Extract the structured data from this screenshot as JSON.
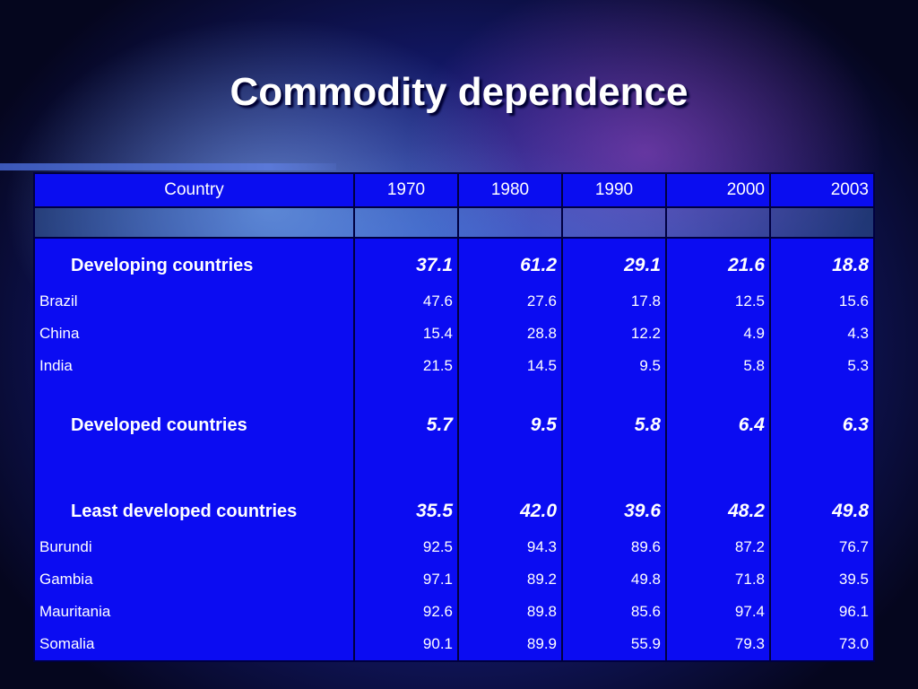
{
  "title": "Commodity dependence",
  "table": {
    "columns": [
      "Country",
      "1970",
      "1980",
      "1990",
      "2000",
      "2003"
    ],
    "groups": [
      {
        "name": "Developing countries",
        "values": [
          "37.1",
          "61.2",
          "29.1",
          "21.6",
          "18.8"
        ],
        "rows": [
          {
            "name": "Brazil",
            "values": [
              "47.6",
              "27.6",
              "17.8",
              "12.5",
              "15.6"
            ]
          },
          {
            "name": "China",
            "values": [
              "15.4",
              "28.8",
              "12.2",
              "4.9",
              "4.3"
            ]
          },
          {
            "name": "India",
            "values": [
              "21.5",
              "14.5",
              "9.5",
              "5.8",
              "5.3"
            ]
          }
        ]
      },
      {
        "name": "Developed countries",
        "values": [
          "5.7",
          "9.5",
          "5.8",
          "6.4",
          "6.3"
        ],
        "rows": []
      },
      {
        "name": "Least developed countries",
        "values": [
          "35.5",
          "42.0",
          "39.6",
          "48.2",
          "49.8"
        ],
        "rows": [
          {
            "name": "Burundi",
            "values": [
              "92.5",
              "94.3",
              "89.6",
              "87.2",
              "76.7"
            ]
          },
          {
            "name": "Gambia",
            "values": [
              "97.1",
              "89.2",
              "49.8",
              "71.8",
              "39.5"
            ]
          },
          {
            "name": "Mauritania",
            "values": [
              "92.6",
              "89.8",
              "85.6",
              "97.4",
              "96.1"
            ]
          },
          {
            "name": "Somalia",
            "values": [
              "90.1",
              "89.9",
              "55.9",
              "79.3",
              "73.0"
            ]
          }
        ]
      }
    ]
  }
}
